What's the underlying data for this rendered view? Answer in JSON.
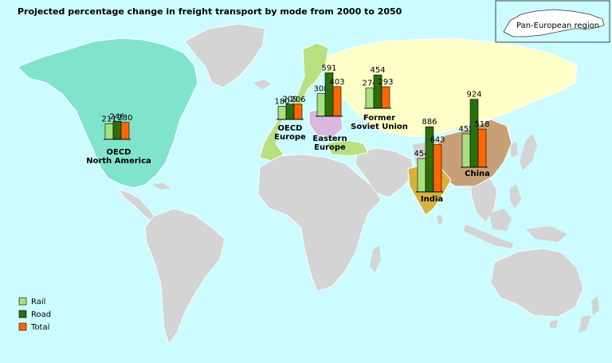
{
  "title": "Projected percentage change in freight transport by mode from 2000 to 2050",
  "inset_label": "Pan-European region",
  "colors": {
    "ocean": "#ccfcff",
    "land": "#d4d4d4",
    "north_america": "#80e4cc",
    "oecd_europe": "#b8e080",
    "eastern_europe": "#d8b8e0",
    "former_soviet_union": "#ffffc8",
    "china": "#c8a078",
    "india": "#d8b040",
    "rail": "#a8e080",
    "road": "#2c6e0c",
    "total": "#ff6600"
  },
  "legend": [
    {
      "label": "Rail",
      "color_key": "rail"
    },
    {
      "label": "Road",
      "color_key": "road"
    },
    {
      "label": "Total",
      "color_key": "total"
    }
  ],
  "chart_data": {
    "type": "bar",
    "series_names": [
      "Rail",
      "Road",
      "Total"
    ],
    "regions": [
      {
        "label_lines": [
          "OECD",
          "North America"
        ],
        "values": [
          211,
          246,
          230
        ]
      },
      {
        "label_lines": [
          "OECD",
          "Europe"
        ],
        "values": [
          180,
          209,
          206
        ]
      },
      {
        "label_lines": [
          "Eastern",
          "Europe"
        ],
        "values": [
          308,
          591,
          403
        ]
      },
      {
        "label_lines": [
          "Former",
          "Soviet Union"
        ],
        "values": [
          274,
          454,
          293
        ]
      },
      {
        "label_lines": [
          "India"
        ],
        "values": [
          454,
          886,
          643
        ]
      },
      {
        "label_lines": [
          "China"
        ],
        "values": [
          455,
          924,
          518
        ]
      }
    ]
  }
}
